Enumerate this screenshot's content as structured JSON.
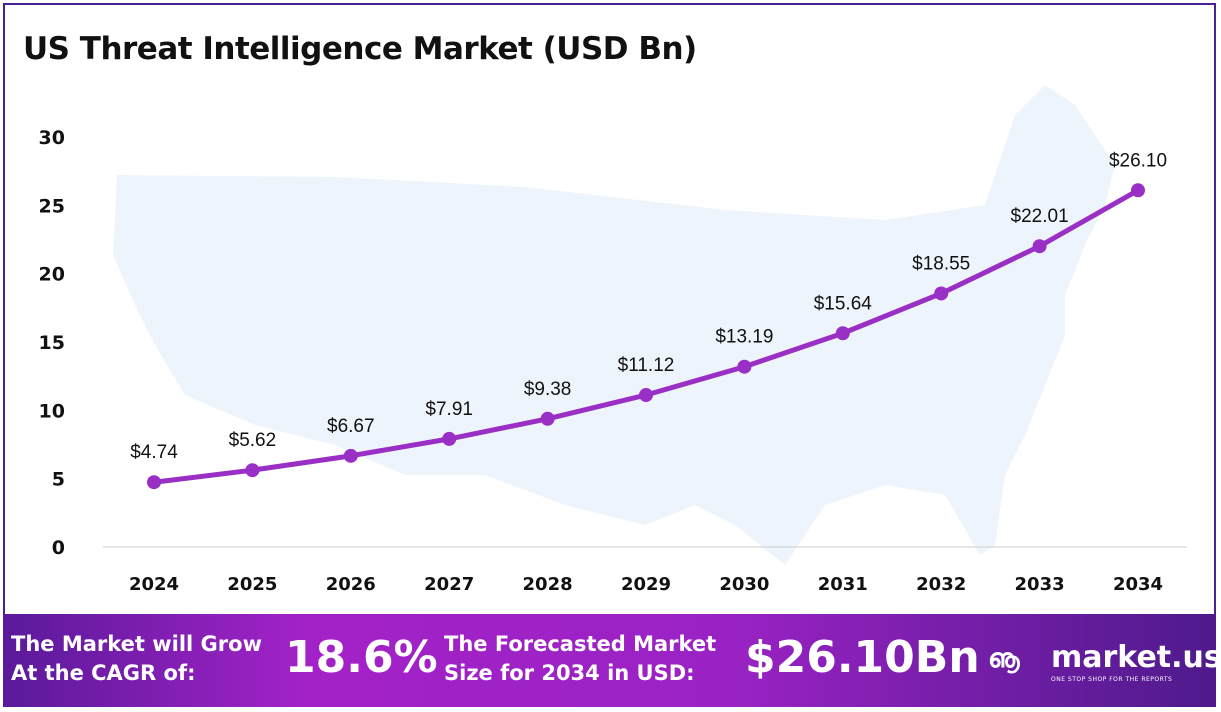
{
  "chart_data": {
    "type": "line",
    "title": "US Threat Intelligence Market (USD Bn)",
    "categories": [
      "2024",
      "2025",
      "2026",
      "2027",
      "2028",
      "2029",
      "2030",
      "2031",
      "2032",
      "2033",
      "2034"
    ],
    "values": [
      4.74,
      5.62,
      6.67,
      7.91,
      9.38,
      11.12,
      13.19,
      15.64,
      18.55,
      22.01,
      26.1
    ],
    "data_labels": [
      "$4.74",
      "$5.62",
      "$6.67",
      "$7.91",
      "$9.38",
      "$11.12",
      "$13.19",
      "$15.64",
      "$18.55",
      "$22.01",
      "$26.10"
    ],
    "yticks": [
      "0",
      "5",
      "10",
      "15",
      "20",
      "25",
      "30"
    ],
    "ylim": [
      0,
      30
    ],
    "grid": false,
    "line_color": "#9a2fc6"
  },
  "banner": {
    "cagr_label_1": "The Market will Grow",
    "cagr_label_2": "At the CAGR of:",
    "cagr_value": "18.6%",
    "forecast_label_1": "The Forecasted Market",
    "forecast_label_2": "Size for 2034 in USD:",
    "forecast_value": "$26.10Bn",
    "brand": "market.us",
    "tagline": "ONE STOP SHOP FOR THE REPORTS"
  }
}
